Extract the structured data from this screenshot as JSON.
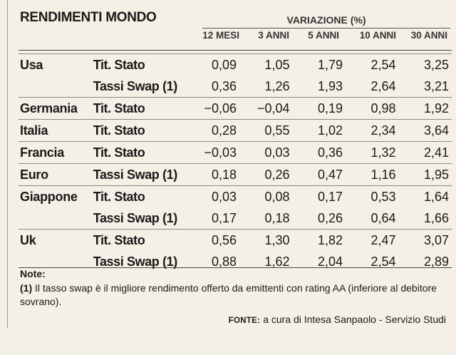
{
  "title": "RENDIMENTI MONDO",
  "group_header": "VARIAZIONE (%)",
  "columns": [
    "12 MESI",
    "3 ANNI",
    "5 ANNI",
    "10 ANNI",
    "30 ANNI"
  ],
  "rows": [
    {
      "country": "Usa",
      "instrument": "Tit. Stato",
      "values": [
        "0,09",
        "1,05",
        "1,79",
        "2,54",
        "3,25"
      ]
    },
    {
      "country": "",
      "instrument": "Tassi Swap (1)",
      "values": [
        "0,36",
        "1,26",
        "1,93",
        "2,64",
        "3,21"
      ]
    },
    {
      "country": "Germania",
      "instrument": "Tit. Stato",
      "values": [
        "−0,06",
        "−0,04",
        "0,19",
        "0,98",
        "1,92"
      ]
    },
    {
      "country": "Italia",
      "instrument": "Tit. Stato",
      "values": [
        "0,28",
        "0,55",
        "1,02",
        "2,34",
        "3,64"
      ]
    },
    {
      "country": "Francia",
      "instrument": "Tit. Stato",
      "values": [
        "−0,03",
        "0,03",
        "0,36",
        "1,32",
        "2,41"
      ]
    },
    {
      "country": "Euro",
      "instrument": "Tassi Swap (1)",
      "values": [
        "0,18",
        "0,26",
        "0,47",
        "1,16",
        "1,95"
      ]
    },
    {
      "country": "Giappone",
      "instrument": "Tit. Stato",
      "values": [
        "0,03",
        "0,08",
        "0,17",
        "0,53",
        "1,64"
      ]
    },
    {
      "country": "",
      "instrument": "Tassi Swap (1)",
      "values": [
        "0,17",
        "0,18",
        "0,26",
        "0,64",
        "1,66"
      ]
    },
    {
      "country": "Uk",
      "instrument": "Tit. Stato",
      "values": [
        "0,56",
        "1,30",
        "1,82",
        "2,47",
        "3,07"
      ]
    },
    {
      "country": "",
      "instrument": "Tassi Swap (1)",
      "values": [
        "0,88",
        "1,62",
        "2,04",
        "2,54",
        "2,89"
      ]
    }
  ],
  "notes": {
    "label": "Note:",
    "marker": "(1)",
    "text": "Il tasso swap è il migliore rendimento offerto da emittenti con rating AA (inferiore al debitore sovrano)."
  },
  "source": {
    "label": "FONTE:",
    "text": "a cura di Intesa Sanpaolo - Servizio Studi"
  }
}
